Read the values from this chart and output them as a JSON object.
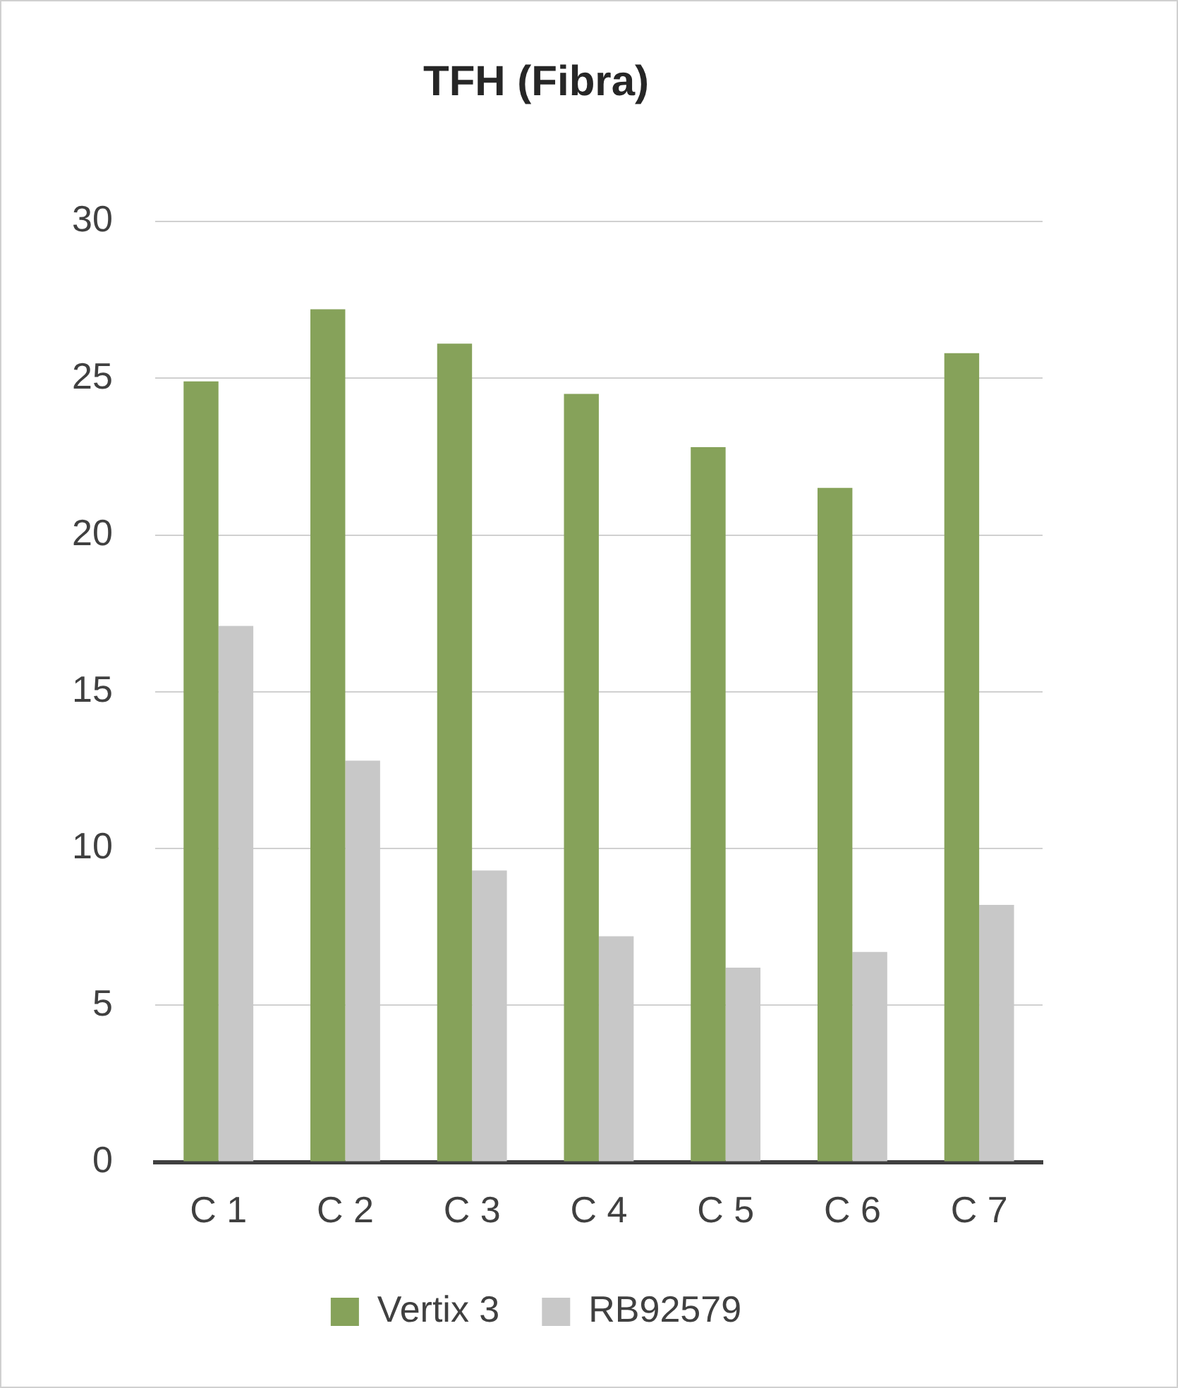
{
  "chart_data": {
    "type": "bar",
    "title": "TFH (Fibra)",
    "categories": [
      "C 1",
      "C 2",
      "C 3",
      "C 4",
      "C 5",
      "C 6",
      "C 7"
    ],
    "series": [
      {
        "name": "Vertix 3",
        "color": "#86a25a",
        "values": [
          24.9,
          27.2,
          26.1,
          24.5,
          22.8,
          21.5,
          25.8
        ]
      },
      {
        "name": "RB92579",
        "color": "#c8c8c8",
        "values": [
          17.1,
          12.8,
          9.3,
          7.2,
          6.2,
          6.7,
          8.2
        ]
      }
    ],
    "ylim": [
      0,
      30
    ],
    "yticks": [
      0,
      5,
      10,
      15,
      20,
      25,
      30
    ],
    "grid": "y",
    "legend": "bottom"
  }
}
